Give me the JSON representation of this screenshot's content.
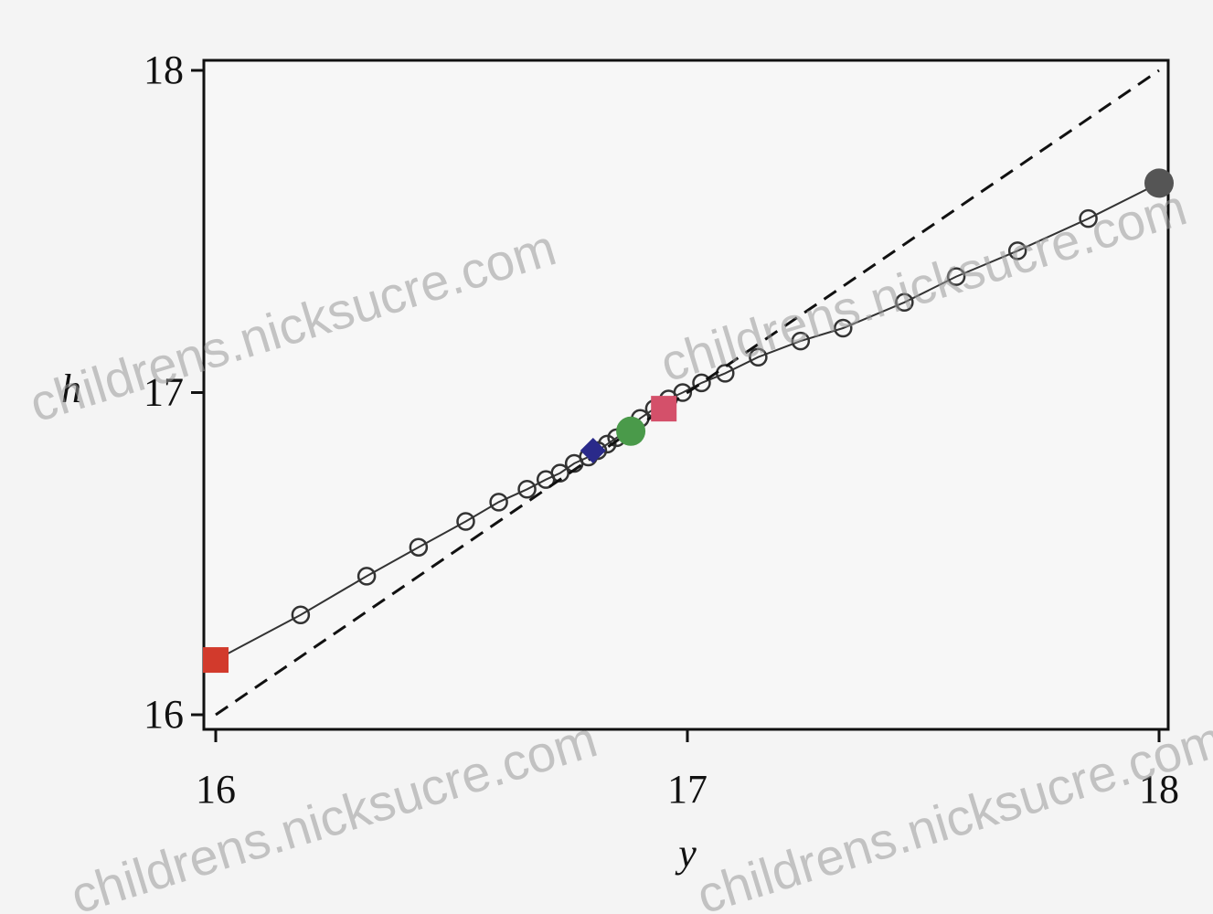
{
  "chart_data": {
    "type": "line",
    "xlabel": "y",
    "ylabel": "h",
    "xlim": [
      16,
      18
    ],
    "ylim": [
      16,
      18
    ],
    "x_ticks": [
      "16",
      "17",
      "18"
    ],
    "y_ticks": [
      "16",
      "17",
      "18"
    ],
    "grid": false,
    "series": [
      {
        "style": "solid-line-open-circles",
        "color": "#333333",
        "x": [
          16.0,
          16.18,
          16.32,
          16.43,
          16.53,
          16.6,
          16.66,
          16.7,
          16.73,
          16.76,
          16.79,
          16.81,
          16.83,
          16.85,
          16.87,
          16.9,
          16.93,
          16.96,
          16.99,
          17.03,
          17.08,
          17.15,
          17.24,
          17.33,
          17.46,
          17.57,
          17.7,
          17.85,
          18.0
        ],
        "y": [
          16.17,
          16.31,
          16.43,
          16.52,
          16.6,
          16.66,
          16.7,
          16.73,
          16.75,
          16.78,
          16.8,
          16.82,
          16.84,
          16.86,
          16.88,
          16.92,
          16.95,
          16.98,
          17.0,
          17.03,
          17.06,
          17.11,
          17.16,
          17.2,
          17.28,
          17.36,
          17.44,
          17.54,
          17.65
        ]
      },
      {
        "style": "dashed-line",
        "color": "#111111",
        "x": [
          16.0,
          18.0
        ],
        "y": [
          16.0,
          18.0
        ]
      }
    ],
    "highlights": [
      {
        "shape": "square",
        "color": "#d23a2c",
        "x": 16.0,
        "y": 16.17
      },
      {
        "shape": "diamond",
        "color": "#2a2a8a",
        "x": 16.8,
        "y": 16.82
      },
      {
        "shape": "circle",
        "color": "#4a9a4a",
        "x": 16.88,
        "y": 16.88
      },
      {
        "shape": "square",
        "color": "#d4506a",
        "x": 16.95,
        "y": 16.95
      },
      {
        "shape": "circle",
        "color": "#555555",
        "x": 18.0,
        "y": 17.65
      }
    ]
  },
  "watermarks": [
    "childrens.nicksucre.com",
    "childrens.nicksucre.com",
    "childrens.nicksucre.com",
    "childrens.nicksucre.com"
  ]
}
